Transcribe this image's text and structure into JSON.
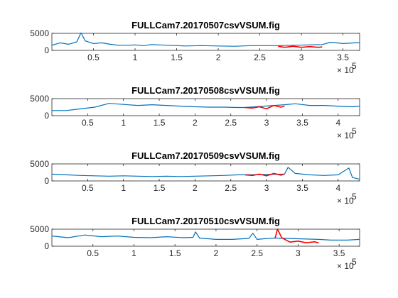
{
  "chart_data": [
    {
      "type": "line",
      "title": "FULLCam7.20170507csvVSUM.fig",
      "xlim": [
        0,
        370000
      ],
      "ylim": [
        0,
        5000
      ],
      "yticks": [
        0,
        5000
      ],
      "ytick_labels": [
        "0",
        "5000"
      ],
      "xticks": [
        50000,
        100000,
        150000,
        200000,
        250000,
        300000,
        350000
      ],
      "xtick_labels": [
        "0.5",
        "1",
        "1.5",
        "2",
        "2.5",
        "3",
        "3.5"
      ],
      "x_exponent": "× 10",
      "x_exponent_power": "5",
      "grid": false,
      "series": [
        {
          "color": "#0072BD",
          "x": [
            0,
            10000,
            20000,
            30000,
            35000,
            40000,
            50000,
            60000,
            70000,
            80000,
            90000,
            100000,
            110000,
            120000,
            140000,
            160000,
            180000,
            200000,
            220000,
            240000,
            260000,
            272000,
            325000,
            335000,
            350000,
            370000
          ],
          "y": [
            1500,
            2200,
            1800,
            2500,
            5200,
            2800,
            2000,
            2200,
            1800,
            1500,
            1500,
            1600,
            1400,
            1700,
            1500,
            1300,
            1400,
            1300,
            1200,
            1400,
            1400,
            1400,
            1700,
            2400,
            2000,
            2300
          ]
        },
        {
          "color": "#FF0000",
          "x": [
            272000,
            280000,
            290000,
            300000,
            310000,
            320000,
            325000
          ],
          "y": [
            1200,
            900,
            1200,
            900,
            1100,
            900,
            1000
          ]
        }
      ]
    },
    {
      "type": "line",
      "title": "FULLCam7.20170508csvVSUM.fig",
      "xlim": [
        0,
        430000
      ],
      "ylim": [
        0,
        5000
      ],
      "yticks": [
        0,
        5000
      ],
      "ytick_labels": [
        "0",
        "5000"
      ],
      "xticks": [
        50000,
        100000,
        150000,
        200000,
        250000,
        300000,
        350000,
        400000
      ],
      "xtick_labels": [
        "0.5",
        "1",
        "1.5",
        "2",
        "2.5",
        "3",
        "3.5",
        "4"
      ],
      "x_exponent": "× 10",
      "x_exponent_power": "5",
      "grid": false,
      "series": [
        {
          "color": "#0072BD",
          "x": [
            0,
            20000,
            40000,
            60000,
            80000,
            100000,
            120000,
            140000,
            160000,
            180000,
            200000,
            220000,
            240000,
            260000,
            270000,
            325000,
            340000,
            360000,
            380000,
            400000,
            420000,
            430000
          ],
          "y": [
            1500,
            1500,
            2000,
            2500,
            3600,
            3300,
            3000,
            3200,
            3000,
            2800,
            2600,
            2500,
            2500,
            2400,
            2400,
            3200,
            3500,
            3000,
            3000,
            2800,
            2600,
            2800
          ]
        },
        {
          "color": "#FF0000",
          "x": [
            270000,
            280000,
            290000,
            300000,
            310000,
            320000,
            325000
          ],
          "y": [
            2400,
            2200,
            2600,
            2000,
            3000,
            2500,
            2800
          ]
        }
      ]
    },
    {
      "type": "line",
      "title": "FULLCam7.20170509csvVSUM.fig",
      "xlim": [
        0,
        430000
      ],
      "ylim": [
        0,
        5000
      ],
      "yticks": [
        0,
        5000
      ],
      "ytick_labels": [
        "0",
        "5000"
      ],
      "xticks": [
        50000,
        100000,
        150000,
        200000,
        250000,
        300000,
        350000,
        400000
      ],
      "xtick_labels": [
        "0.5",
        "1",
        "1.5",
        "2",
        "2.5",
        "3",
        "3.5",
        "4"
      ],
      "x_exponent": "× 10",
      "x_exponent_power": "5",
      "grid": false,
      "series": [
        {
          "color": "#0072BD",
          "x": [
            0,
            20000,
            40000,
            60000,
            80000,
            100000,
            120000,
            140000,
            160000,
            180000,
            200000,
            220000,
            240000,
            260000,
            270000,
            325000,
            330000,
            340000,
            360000,
            380000,
            400000,
            415000,
            420000,
            430000
          ],
          "y": [
            2000,
            1800,
            1600,
            1500,
            1400,
            1500,
            1400,
            1300,
            1400,
            1300,
            1400,
            1500,
            1600,
            1800,
            1800,
            2000,
            4000,
            2200,
            1800,
            1600,
            1800,
            3800,
            1000,
            500
          ]
        },
        {
          "color": "#FF0000",
          "x": [
            270000,
            280000,
            290000,
            300000,
            310000,
            320000,
            325000
          ],
          "y": [
            1800,
            1600,
            2000,
            1500,
            2200,
            1700,
            2000
          ]
        }
      ]
    },
    {
      "type": "line",
      "title": "FULLCam7.20170510csvVSUM.fig",
      "xlim": [
        0,
        375000
      ],
      "ylim": [
        0,
        5000
      ],
      "yticks": [
        0,
        5000
      ],
      "ytick_labels": [
        "0",
        "5000"
      ],
      "xticks": [
        50000,
        100000,
        150000,
        200000,
        250000,
        300000,
        350000
      ],
      "xtick_labels": [
        "0.5",
        "1",
        "1.5",
        "2",
        "2.5",
        "3",
        "3.5"
      ],
      "x_exponent": "× 10",
      "x_exponent_power": "5",
      "grid": false,
      "series": [
        {
          "color": "#0072BD",
          "x": [
            0,
            20000,
            40000,
            60000,
            80000,
            100000,
            120000,
            140000,
            160000,
            172000,
            175000,
            180000,
            200000,
            220000,
            240000,
            245000,
            250000,
            260000,
            272000,
            325000,
            340000,
            360000,
            375000
          ],
          "y": [
            3000,
            2500,
            3300,
            2800,
            3000,
            2600,
            2500,
            2800,
            2500,
            2600,
            4200,
            2400,
            2000,
            2000,
            2300,
            3800,
            2000,
            2200,
            2400,
            2000,
            1800,
            1800,
            2000
          ]
        },
        {
          "color": "#FF0000",
          "x": [
            272000,
            275000,
            280000,
            290000,
            300000,
            310000,
            320000,
            325000
          ],
          "y": [
            2400,
            5000,
            2500,
            1200,
            1500,
            1000,
            1300,
            1000
          ]
        }
      ]
    }
  ]
}
